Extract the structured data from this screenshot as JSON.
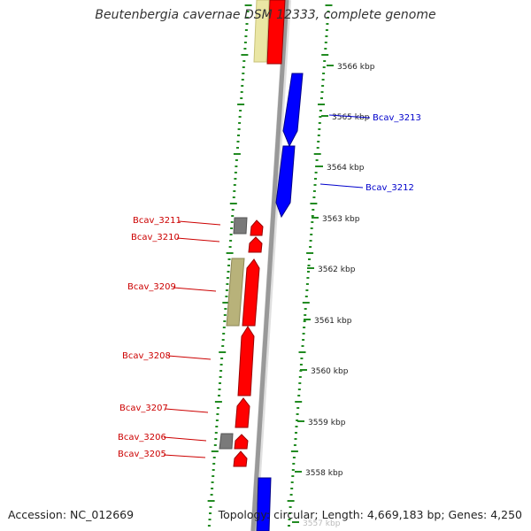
{
  "title": "Beutenbergia cavernae DSM 12333, complete genome",
  "footer": {
    "accession_label": "Accession:",
    "accession": "NC_012669",
    "topology_text": "Topology: circular; Length: 4,669,183 bp; Genes: 4,250"
  },
  "colors": {
    "gene_forward": "#ff0000",
    "gene_reverse": "#0000ff",
    "gene_other": "#808080",
    "feature_pale": "#e8e4a0",
    "feature_olive": "#b8b27a",
    "label_forward": "#cc0000",
    "label_reverse": "#0000cc",
    "tick_marks": "#228b22",
    "backbone": "#999999"
  },
  "scale_ticks": [
    {
      "label": "3566 kbp"
    },
    {
      "label": "3565 kbp"
    },
    {
      "label": "3564 kbp"
    },
    {
      "label": "3563 kbp"
    },
    {
      "label": "3562 kbp"
    },
    {
      "label": "3561 kbp"
    },
    {
      "label": "3560 kbp"
    },
    {
      "label": "3559 kbp"
    },
    {
      "label": "3558 kbp"
    },
    {
      "label": "3557 kbp"
    }
  ],
  "gene_labels": [
    {
      "name": "Bcav_3213",
      "strand": "reverse"
    },
    {
      "name": "Bcav_3212",
      "strand": "reverse"
    },
    {
      "name": "Bcav_3211",
      "strand": "forward"
    },
    {
      "name": "Bcav_3210",
      "strand": "forward"
    },
    {
      "name": "Bcav_3209",
      "strand": "forward"
    },
    {
      "name": "Bcav_3208",
      "strand": "forward"
    },
    {
      "name": "Bcav_3207",
      "strand": "forward"
    },
    {
      "name": "Bcav_3206",
      "strand": "forward"
    },
    {
      "name": "Bcav_3205",
      "strand": "forward"
    }
  ]
}
